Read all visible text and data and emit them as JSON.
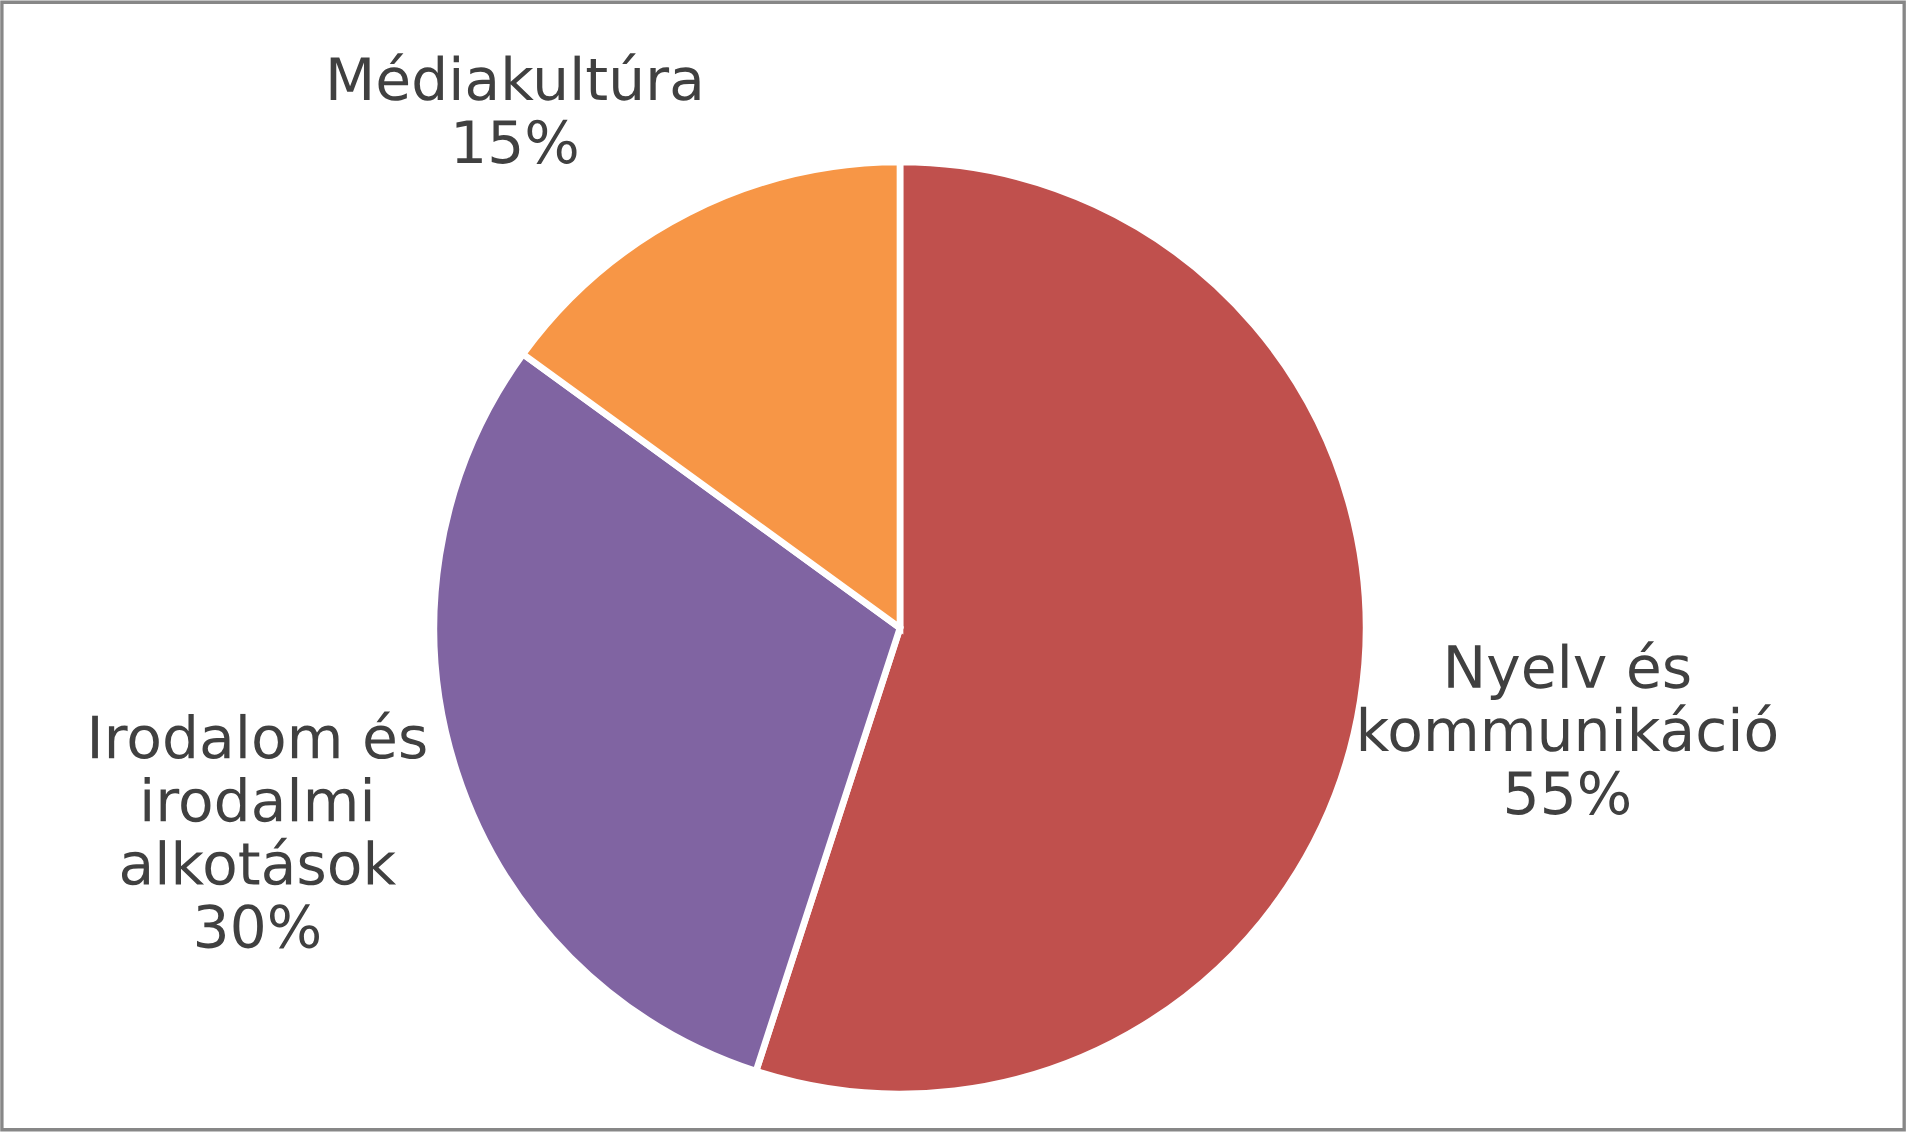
{
  "chart_data": {
    "type": "pie",
    "categories": [
      "Nyelv és\nkommunikáció",
      "Irodalom és\nirodalmi\nalkotások",
      "Médiakultúra"
    ],
    "values": [
      55,
      30,
      15
    ],
    "colors": [
      "#c0504d",
      "#8064a2",
      "#f79646"
    ],
    "value_labels": [
      "55%",
      "30%",
      "15%"
    ]
  }
}
